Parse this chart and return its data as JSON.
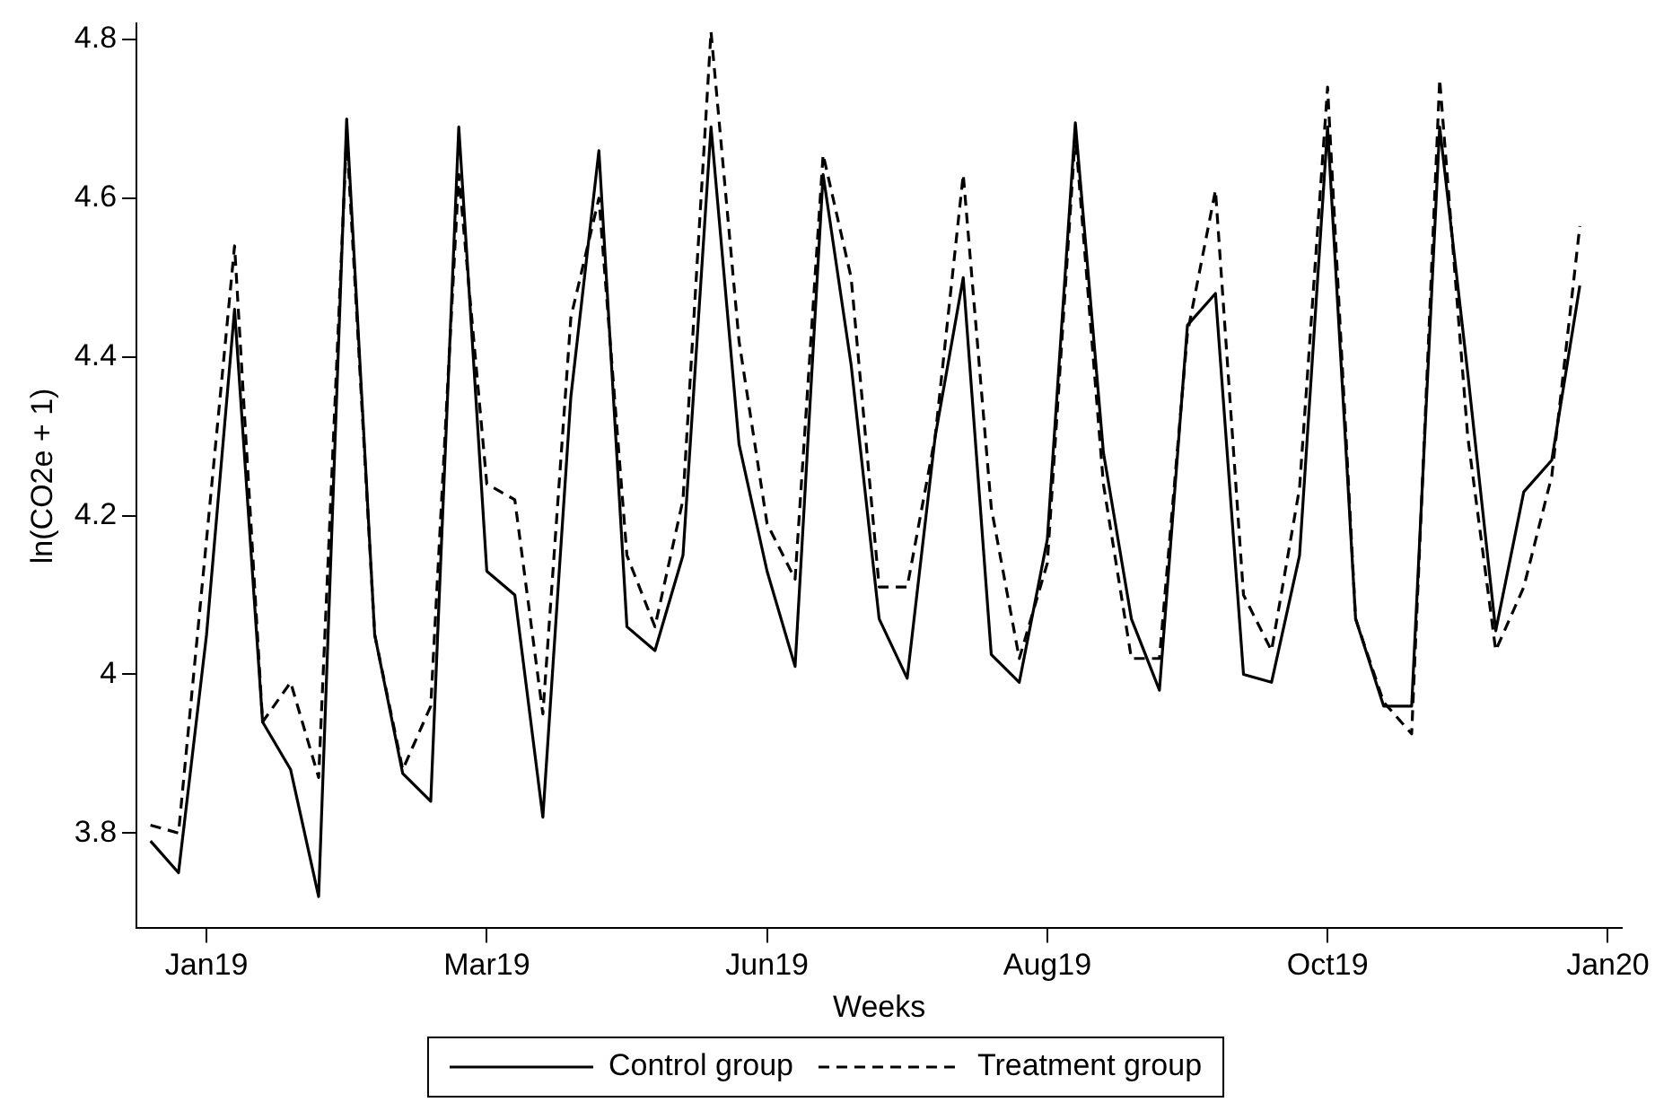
{
  "chart_data": {
    "type": "line",
    "xlabel": "Weeks",
    "ylabel": "ln(CO2e + 1)",
    "categories": [
      null,
      null,
      "Jan19",
      null,
      null,
      null,
      null,
      null,
      null,
      null,
      null,
      null,
      "Mar19",
      null,
      null,
      null,
      null,
      null,
      null,
      null,
      null,
      null,
      "Jun19",
      null,
      null,
      null,
      null,
      null,
      null,
      null,
      null,
      null,
      "Aug19",
      null,
      null,
      null,
      null,
      null,
      null,
      null,
      null,
      null,
      "Oct19",
      null,
      null,
      null,
      null,
      null,
      null,
      null,
      null,
      null,
      "Jan20"
    ],
    "ylim": [
      3.68,
      4.82
    ],
    "yticks": [
      3.8,
      4,
      4.2,
      4.4,
      4.6,
      4.8
    ],
    "grid": false,
    "legend": "bottom",
    "marker": "none",
    "series": [
      {
        "name": "Control group",
        "color": "#000000",
        "line_style": "solid",
        "values": [
          3.79,
          3.75,
          4.05,
          4.46,
          3.94,
          3.88,
          3.72,
          4.7,
          4.05,
          3.875,
          3.84,
          4.69,
          4.13,
          4.1,
          3.82,
          4.35,
          4.66,
          4.06,
          4.03,
          4.15,
          4.69,
          4.29,
          4.13,
          4.01,
          4.63,
          4.39,
          4.07,
          3.995,
          4.3,
          4.5,
          4.025,
          3.99,
          4.17,
          4.695,
          4.28,
          4.07,
          3.98,
          4.44,
          4.48,
          4.0,
          3.99,
          4.15,
          4.69,
          4.07,
          3.96,
          3.96,
          4.69,
          4.38,
          4.055,
          4.23,
          4.27,
          4.49,
          null
        ]
      },
      {
        "name": "Treatment group",
        "color": "#000000",
        "line_style": "dashed",
        "values": [
          3.81,
          3.8,
          4.17,
          4.54,
          3.94,
          3.99,
          3.87,
          4.68,
          4.05,
          3.88,
          3.96,
          4.63,
          4.24,
          4.22,
          3.95,
          4.45,
          4.6,
          4.15,
          4.06,
          4.22,
          4.81,
          4.42,
          4.19,
          4.12,
          4.655,
          4.5,
          4.11,
          4.11,
          4.3,
          4.63,
          4.21,
          4.02,
          4.14,
          4.68,
          4.24,
          4.02,
          4.02,
          4.43,
          4.61,
          4.1,
          4.03,
          4.235,
          4.74,
          4.07,
          3.965,
          3.925,
          4.75,
          4.3,
          4.03,
          4.11,
          4.25,
          4.565,
          null
        ]
      }
    ]
  }
}
